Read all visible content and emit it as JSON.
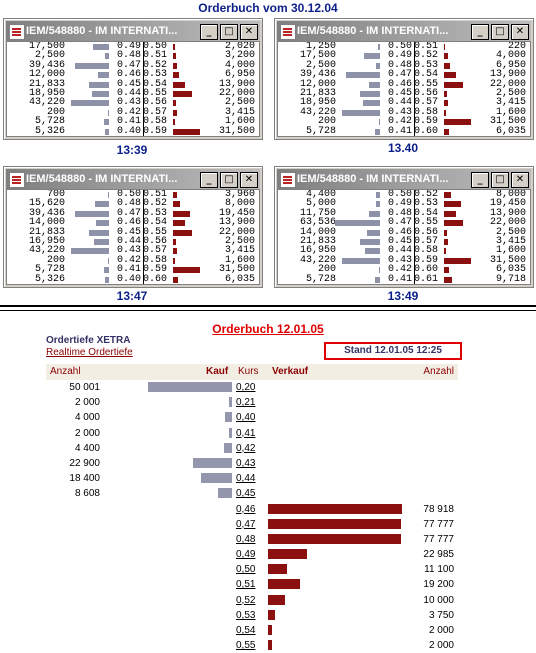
{
  "page_title": "Orderbuch vom 30.12.04",
  "window_title": "IEM/548880 - IM INTERNATI...",
  "window_buttons": [
    "_",
    "□",
    "✕"
  ],
  "colors": {
    "bid_bar": "#8e92a8",
    "ask_bar": "#8b1010",
    "title_blue": "#0b1f8a",
    "title_red": "#e00000"
  },
  "windows": [
    {
      "time": "13:39",
      "rows": [
        {
          "bq": "17,500",
          "bp": "0.49",
          "ap": "0.50",
          "aq": "2,020",
          "bbar": 18,
          "abar": 2
        },
        {
          "bq": "2,500",
          "bp": "0.48",
          "ap": "0.51",
          "aq": "3,200",
          "bbar": 4,
          "abar": 3
        },
        {
          "bq": "39,436",
          "bp": "0.47",
          "ap": "0.52",
          "aq": "4,000",
          "bbar": 38,
          "abar": 4
        },
        {
          "bq": "12,000",
          "bp": "0.46",
          "ap": "0.53",
          "aq": "6,950",
          "bbar": 12,
          "abar": 7
        },
        {
          "bq": "21,833",
          "bp": "0.45",
          "ap": "0.54",
          "aq": "13,900",
          "bbar": 22,
          "abar": 13
        },
        {
          "bq": "18,950",
          "bp": "0.44",
          "ap": "0.55",
          "aq": "22,000",
          "bbar": 19,
          "abar": 21
        },
        {
          "bq": "43,220",
          "bp": "0.43",
          "ap": "0.56",
          "aq": "2,500",
          "bbar": 42,
          "abar": 3
        },
        {
          "bq": "200",
          "bp": "0.42",
          "ap": "0.57",
          "aq": "3,415",
          "bbar": 1,
          "abar": 4
        },
        {
          "bq": "5,728",
          "bp": "0.41",
          "ap": "0.58",
          "aq": "1,600",
          "bbar": 6,
          "abar": 2
        },
        {
          "bq": "5,326",
          "bp": "0.40",
          "ap": "0.59",
          "aq": "31,500",
          "bbar": 5,
          "abar": 30
        }
      ]
    },
    {
      "time": "13.40",
      "rows": [
        {
          "bq": "1,250",
          "bp": "0.50",
          "ap": "0.51",
          "aq": "220",
          "bbar": 2,
          "abar": 1
        },
        {
          "bq": "17,500",
          "bp": "0.49",
          "ap": "0.52",
          "aq": "4,000",
          "bbar": 18,
          "abar": 4
        },
        {
          "bq": "2,500",
          "bp": "0.48",
          "ap": "0.53",
          "aq": "6,950",
          "bbar": 4,
          "abar": 7
        },
        {
          "bq": "39,436",
          "bp": "0.47",
          "ap": "0.54",
          "aq": "13,900",
          "bbar": 38,
          "abar": 13
        },
        {
          "bq": "12,000",
          "bp": "0.46",
          "ap": "0.55",
          "aq": "22,000",
          "bbar": 12,
          "abar": 21
        },
        {
          "bq": "21,833",
          "bp": "0.45",
          "ap": "0.56",
          "aq": "2,500",
          "bbar": 22,
          "abar": 3
        },
        {
          "bq": "18,950",
          "bp": "0.44",
          "ap": "0.57",
          "aq": "3,415",
          "bbar": 19,
          "abar": 4
        },
        {
          "bq": "43,220",
          "bp": "0.43",
          "ap": "0.58",
          "aq": "1,600",
          "bbar": 42,
          "abar": 2
        },
        {
          "bq": "200",
          "bp": "0.42",
          "ap": "0.59",
          "aq": "31,500",
          "bbar": 1,
          "abar": 30
        },
        {
          "bq": "5,728",
          "bp": "0.41",
          "ap": "0.60",
          "aq": "6,035",
          "bbar": 6,
          "abar": 6
        }
      ]
    },
    {
      "time": "13:47",
      "rows": [
        {
          "bq": "700",
          "bp": "0.50",
          "ap": "0.51",
          "aq": "3,960",
          "bbar": 1,
          "abar": 4
        },
        {
          "bq": "15,620",
          "bp": "0.48",
          "ap": "0.52",
          "aq": "8,000",
          "bbar": 16,
          "abar": 8
        },
        {
          "bq": "39,436",
          "bp": "0.47",
          "ap": "0.53",
          "aq": "19,450",
          "bbar": 38,
          "abar": 19
        },
        {
          "bq": "14,000",
          "bp": "0.46",
          "ap": "0.54",
          "aq": "13,900",
          "bbar": 14,
          "abar": 13
        },
        {
          "bq": "21,833",
          "bp": "0.45",
          "ap": "0.55",
          "aq": "22,000",
          "bbar": 22,
          "abar": 21
        },
        {
          "bq": "16,950",
          "bp": "0.44",
          "ap": "0.56",
          "aq": "2,500",
          "bbar": 17,
          "abar": 3
        },
        {
          "bq": "43,220",
          "bp": "0.43",
          "ap": "0.57",
          "aq": "3,415",
          "bbar": 42,
          "abar": 4
        },
        {
          "bq": "200",
          "bp": "0.42",
          "ap": "0.58",
          "aq": "1,600",
          "bbar": 1,
          "abar": 2
        },
        {
          "bq": "5,728",
          "bp": "0.41",
          "ap": "0.59",
          "aq": "31,500",
          "bbar": 6,
          "abar": 30
        },
        {
          "bq": "5,326",
          "bp": "0.40",
          "ap": "0.60",
          "aq": "6,035",
          "bbar": 5,
          "abar": 6
        }
      ]
    },
    {
      "time": "13:49",
      "rows": [
        {
          "bq": "4,400",
          "bp": "0.50",
          "ap": "0.52",
          "aq": "8,000",
          "bbar": 5,
          "abar": 8
        },
        {
          "bq": "5,000",
          "bp": "0.49",
          "ap": "0.53",
          "aq": "19,450",
          "bbar": 5,
          "abar": 19
        },
        {
          "bq": "11,750",
          "bp": "0.48",
          "ap": "0.54",
          "aq": "13,900",
          "bbar": 12,
          "abar": 13
        },
        {
          "bq": "63,536",
          "bp": "0.47",
          "ap": "0.55",
          "aq": "22,000",
          "bbar": 50,
          "abar": 21
        },
        {
          "bq": "14,000",
          "bp": "0.46",
          "ap": "0.56",
          "aq": "2,500",
          "bbar": 14,
          "abar": 3
        },
        {
          "bq": "21,833",
          "bp": "0.45",
          "ap": "0.57",
          "aq": "3,415",
          "bbar": 22,
          "abar": 4
        },
        {
          "bq": "16,950",
          "bp": "0.44",
          "ap": "0.58",
          "aq": "1,600",
          "bbar": 17,
          "abar": 2
        },
        {
          "bq": "43,220",
          "bp": "0.43",
          "ap": "0.59",
          "aq": "31,500",
          "bbar": 42,
          "abar": 30
        },
        {
          "bq": "200",
          "bp": "0.42",
          "ap": "0.60",
          "aq": "6,035",
          "bbar": 1,
          "abar": 6
        },
        {
          "bq": "5,728",
          "bp": "0.41",
          "ap": "0.61",
          "aq": "9,718",
          "bbar": 6,
          "abar": 9
        }
      ]
    }
  ],
  "xetra": {
    "title": "Orderbuch 12.01.05",
    "heading": "Ordertiefe XETRA",
    "link": "Realtime Ordertiefe",
    "stand": "Stand 12.01.05 12:25",
    "headers": {
      "anzahl_left": "Anzahl",
      "kauf": "Kauf",
      "kurs": "Kurs",
      "verkauf": "Verkauf",
      "anzahl_right": "Anzahl"
    },
    "bids": [
      {
        "qty": "50 001",
        "kurs": "0,20",
        "bar": 100
      },
      {
        "qty": "2 000",
        "kurs": "0,21",
        "bar": 4
      },
      {
        "qty": "4 000",
        "kurs": "0,40",
        "bar": 8
      },
      {
        "qty": "2 000",
        "kurs": "0,41",
        "bar": 4
      },
      {
        "qty": "4 400",
        "kurs": "0,42",
        "bar": 9
      },
      {
        "qty": "22 900",
        "kurs": "0,43",
        "bar": 46
      },
      {
        "qty": "18 400",
        "kurs": "0,44",
        "bar": 37
      },
      {
        "qty": "8 608",
        "kurs": "0,45",
        "bar": 17
      }
    ],
    "asks": [
      {
        "qty": "78 918",
        "kurs": "0,46",
        "bar": 100
      },
      {
        "qty": "77 777",
        "kurs": "0,47",
        "bar": 99
      },
      {
        "qty": "77 777",
        "kurs": "0,48",
        "bar": 99
      },
      {
        "qty": "22 985",
        "kurs": "0,49",
        "bar": 29
      },
      {
        "qty": "11 100",
        "kurs": "0,50",
        "bar": 14
      },
      {
        "qty": "19 200",
        "kurs": "0,51",
        "bar": 24
      },
      {
        "qty": "10 000",
        "kurs": "0,52",
        "bar": 13
      },
      {
        "qty": "3 750",
        "kurs": "0,53",
        "bar": 5
      },
      {
        "qty": "2 000",
        "kurs": "0,54",
        "bar": 3
      },
      {
        "qty": "2 000",
        "kurs": "0,55",
        "bar": 3
      }
    ]
  }
}
